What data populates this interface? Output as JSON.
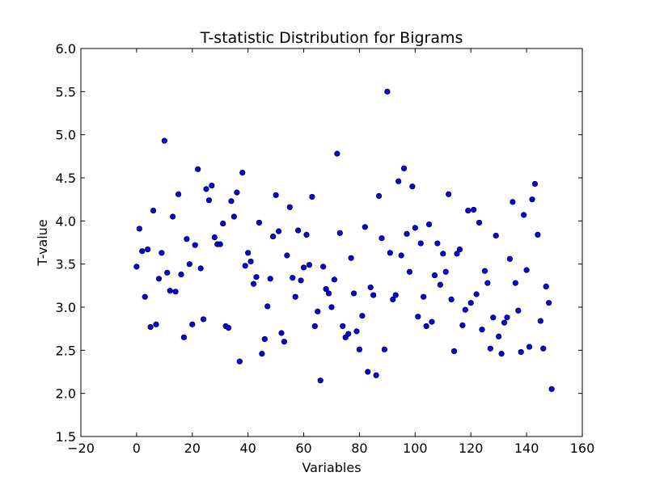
{
  "chart_data": {
    "type": "scatter",
    "title": "T-statistic Distribution for Bigrams",
    "xlabel": "Variables",
    "ylabel": "T-value",
    "xlim": [
      -20,
      160
    ],
    "ylim": [
      1.5,
      6.0
    ],
    "xticks": [
      "−20",
      "0",
      "20",
      "40",
      "60",
      "80",
      "100",
      "120",
      "140",
      "160"
    ],
    "yticks": [
      "1.5",
      "2.0",
      "2.5",
      "3.0",
      "3.5",
      "4.0",
      "4.5",
      "5.0",
      "5.5",
      "6.0"
    ],
    "grid": false,
    "marker_color": "#0000ff",
    "points": [
      [
        0,
        3.47
      ],
      [
        1,
        3.91
      ],
      [
        2,
        3.65
      ],
      [
        3,
        3.12
      ],
      [
        4,
        3.67
      ],
      [
        5,
        2.77
      ],
      [
        6,
        4.12
      ],
      [
        7,
        2.8
      ],
      [
        8,
        3.33
      ],
      [
        9,
        3.63
      ],
      [
        10,
        4.93
      ],
      [
        11,
        3.4
      ],
      [
        12,
        3.19
      ],
      [
        13,
        4.05
      ],
      [
        14,
        3.18
      ],
      [
        15,
        4.31
      ],
      [
        16,
        3.38
      ],
      [
        17,
        2.65
      ],
      [
        18,
        3.79
      ],
      [
        19,
        3.5
      ],
      [
        20,
        2.8
      ],
      [
        21,
        3.72
      ],
      [
        22,
        4.6
      ],
      [
        23,
        3.45
      ],
      [
        24,
        2.86
      ],
      [
        25,
        4.37
      ],
      [
        26,
        4.24
      ],
      [
        27,
        4.41
      ],
      [
        28,
        3.81
      ],
      [
        29,
        3.73
      ],
      [
        30,
        3.73
      ],
      [
        31,
        3.97
      ],
      [
        32,
        2.78
      ],
      [
        33,
        2.76
      ],
      [
        34,
        4.23
      ],
      [
        35,
        4.05
      ],
      [
        36,
        4.33
      ],
      [
        37,
        2.37
      ],
      [
        38,
        4.56
      ],
      [
        39,
        3.48
      ],
      [
        40,
        3.63
      ],
      [
        41,
        3.53
      ],
      [
        42,
        3.27
      ],
      [
        43,
        3.35
      ],
      [
        44,
        3.98
      ],
      [
        45,
        2.46
      ],
      [
        46,
        2.63
      ],
      [
        47,
        3.01
      ],
      [
        48,
        3.33
      ],
      [
        49,
        3.82
      ],
      [
        50,
        4.3
      ],
      [
        51,
        3.88
      ],
      [
        52,
        2.7
      ],
      [
        53,
        2.6
      ],
      [
        54,
        3.6
      ],
      [
        55,
        4.16
      ],
      [
        56,
        3.34
      ],
      [
        57,
        3.12
      ],
      [
        58,
        3.89
      ],
      [
        59,
        3.31
      ],
      [
        60,
        3.46
      ],
      [
        61,
        3.84
      ],
      [
        62,
        3.49
      ],
      [
        63,
        4.28
      ],
      [
        64,
        2.78
      ],
      [
        65,
        2.95
      ],
      [
        66,
        2.15
      ],
      [
        67,
        3.47
      ],
      [
        68,
        3.21
      ],
      [
        69,
        3.16
      ],
      [
        70,
        3.0
      ],
      [
        71,
        3.32
      ],
      [
        72,
        4.78
      ],
      [
        73,
        3.86
      ],
      [
        74,
        2.78
      ],
      [
        75,
        2.65
      ],
      [
        76,
        2.69
      ],
      [
        77,
        3.57
      ],
      [
        78,
        3.16
      ],
      [
        79,
        2.72
      ],
      [
        80,
        2.51
      ],
      [
        81,
        2.9
      ],
      [
        82,
        3.93
      ],
      [
        83,
        2.25
      ],
      [
        84,
        3.23
      ],
      [
        85,
        3.14
      ],
      [
        86,
        2.21
      ],
      [
        87,
        4.29
      ],
      [
        88,
        3.8
      ],
      [
        89,
        2.51
      ],
      [
        90,
        5.5
      ],
      [
        91,
        3.63
      ],
      [
        92,
        3.09
      ],
      [
        93,
        3.14
      ],
      [
        94,
        4.46
      ],
      [
        95,
        3.6
      ],
      [
        96,
        4.61
      ],
      [
        97,
        3.85
      ],
      [
        98,
        3.41
      ],
      [
        99,
        4.4
      ],
      [
        100,
        3.92
      ],
      [
        101,
        2.89
      ],
      [
        102,
        3.74
      ],
      [
        103,
        3.12
      ],
      [
        104,
        2.78
      ],
      [
        105,
        3.96
      ],
      [
        106,
        2.83
      ],
      [
        107,
        3.37
      ],
      [
        108,
        3.74
      ],
      [
        109,
        3.26
      ],
      [
        110,
        3.62
      ],
      [
        111,
        3.41
      ],
      [
        112,
        4.31
      ],
      [
        113,
        3.09
      ],
      [
        114,
        2.49
      ],
      [
        115,
        3.62
      ],
      [
        116,
        3.67
      ],
      [
        117,
        2.79
      ],
      [
        118,
        2.97
      ],
      [
        119,
        4.12
      ],
      [
        120,
        3.05
      ],
      [
        121,
        4.13
      ],
      [
        122,
        3.15
      ],
      [
        123,
        3.98
      ],
      [
        124,
        2.74
      ],
      [
        125,
        3.42
      ],
      [
        126,
        3.28
      ],
      [
        127,
        2.52
      ],
      [
        128,
        2.88
      ],
      [
        129,
        3.83
      ],
      [
        130,
        2.66
      ],
      [
        131,
        2.46
      ],
      [
        132,
        2.82
      ],
      [
        133,
        2.88
      ],
      [
        134,
        3.56
      ],
      [
        135,
        4.22
      ],
      [
        136,
        3.28
      ],
      [
        137,
        2.96
      ],
      [
        138,
        2.48
      ],
      [
        139,
        4.07
      ],
      [
        140,
        3.43
      ],
      [
        141,
        2.54
      ],
      [
        142,
        4.25
      ],
      [
        143,
        4.43
      ],
      [
        144,
        3.84
      ],
      [
        145,
        2.84
      ],
      [
        146,
        2.52
      ],
      [
        147,
        3.24
      ],
      [
        148,
        3.05
      ],
      [
        149,
        2.05
      ]
    ]
  }
}
